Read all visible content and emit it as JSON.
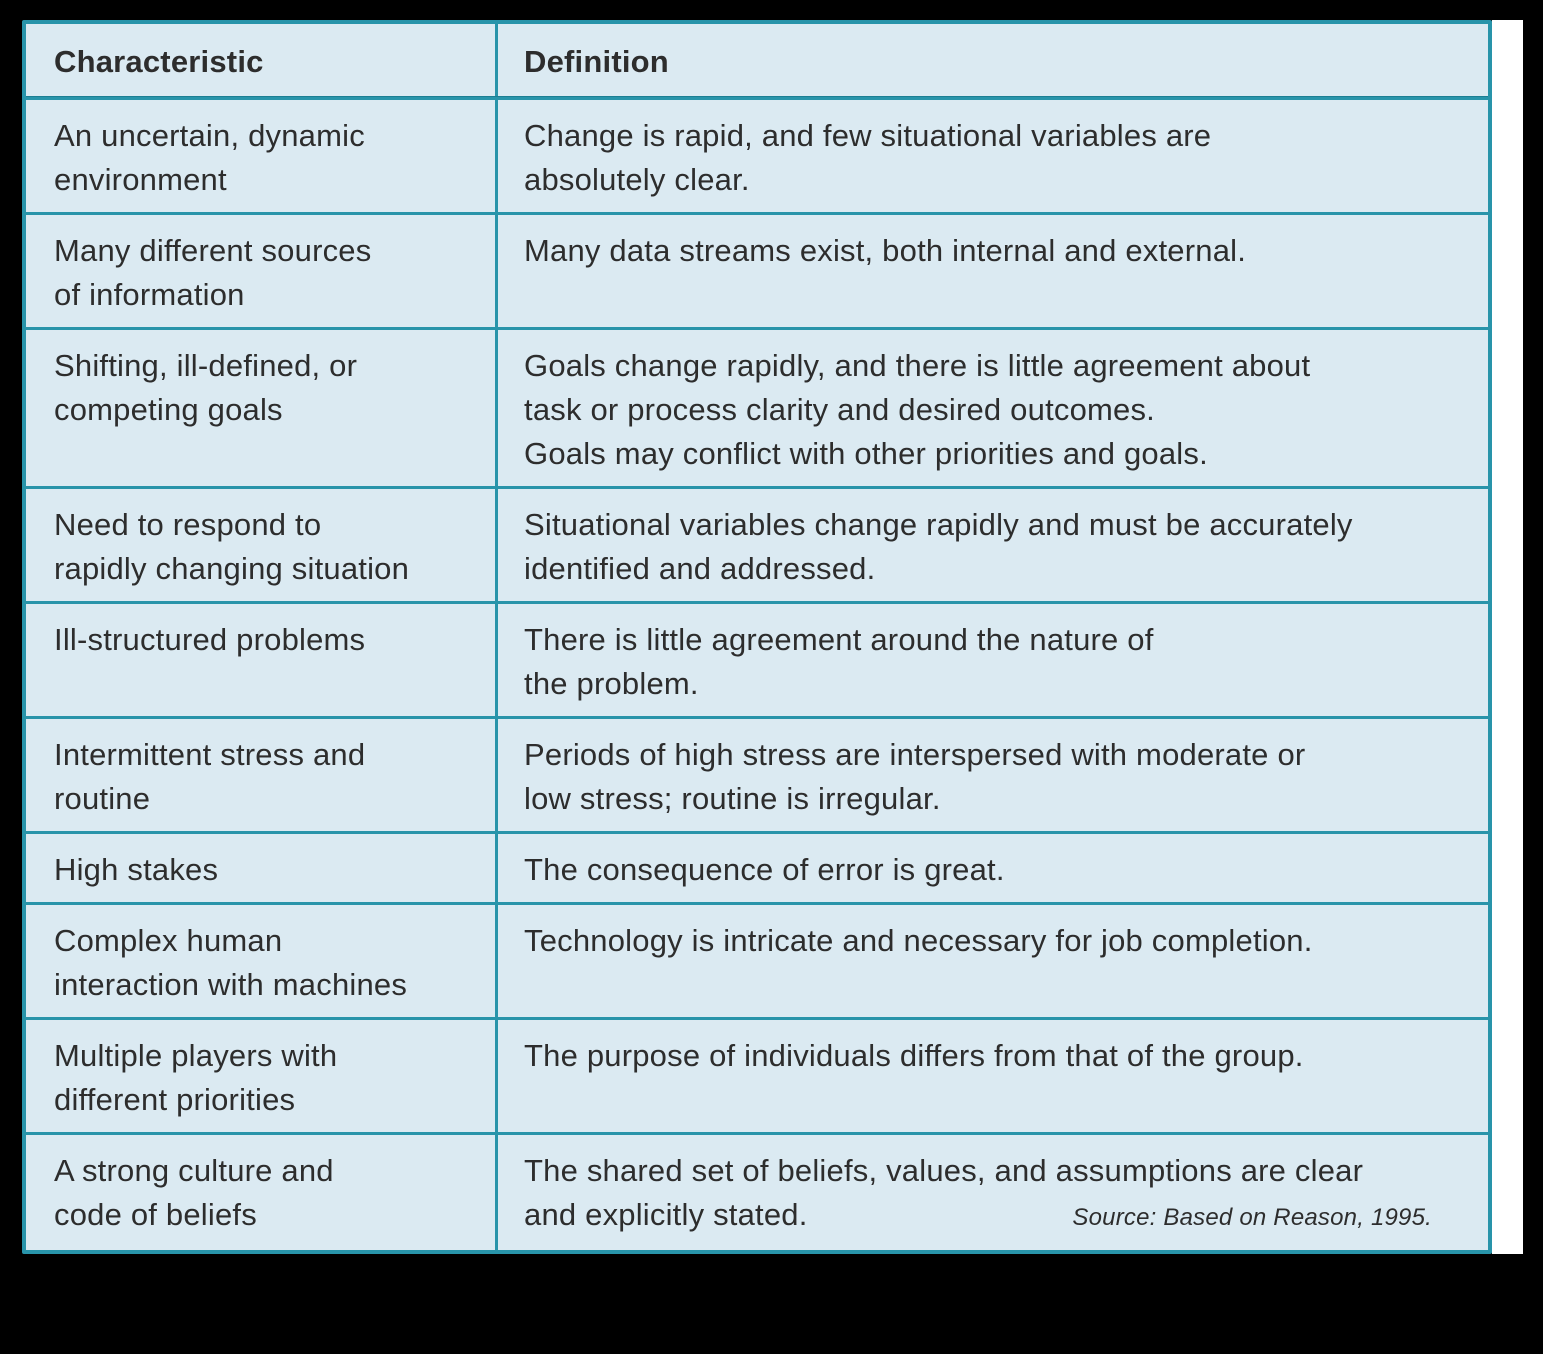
{
  "table": {
    "columns": [
      {
        "label": "Characteristic"
      },
      {
        "label": "Definition"
      }
    ],
    "rows": [
      {
        "characteristic": [
          "An uncertain, dynamic",
          "environment"
        ],
        "definition": [
          "Change is rapid, and few situational variables are",
          "absolutely clear."
        ]
      },
      {
        "characteristic": [
          "Many different sources",
          "of information"
        ],
        "definition": [
          "Many data streams exist, both internal and external."
        ]
      },
      {
        "characteristic": [
          "Shifting, ill-defined, or",
          "competing goals"
        ],
        "definition": [
          "Goals change rapidly, and there is little agreement about",
          "task or process clarity and desired outcomes.",
          "Goals may conflict with other priorities and goals."
        ]
      },
      {
        "characteristic": [
          "Need to respond to",
          "rapidly changing situation"
        ],
        "definition": [
          "Situational variables change rapidly and must be accurately",
          "identified and addressed."
        ]
      },
      {
        "characteristic": [
          "Ill-structured problems"
        ],
        "definition": [
          "There is little agreement around the nature of",
          "the problem."
        ]
      },
      {
        "characteristic": [
          "Intermittent stress and",
          "routine"
        ],
        "definition": [
          "Periods of high stress are interspersed with moderate or",
          "low stress; routine is irregular."
        ]
      },
      {
        "characteristic": [
          "High stakes"
        ],
        "definition": [
          "The consequence of error is great."
        ]
      },
      {
        "characteristic": [
          "Complex human",
          "interaction with machines"
        ],
        "definition": [
          "Technology is intricate and necessary for job completion."
        ]
      },
      {
        "characteristic": [
          "Multiple players with",
          "different priorities"
        ],
        "definition": [
          "The purpose of individuals differs from that of the group."
        ]
      },
      {
        "characteristic": [
          "A strong culture and",
          "code of beliefs"
        ],
        "definition": [
          "The shared set of beliefs, values, and assumptions are clear",
          "and explicitly stated."
        ],
        "source": "Source: Based on Reason, 1995."
      }
    ],
    "colors": {
      "border": "#2894AA",
      "cell_bg": "#DBEAF2",
      "text": "#2D2D2D",
      "surround_bg": "#000000",
      "page_margin": "#FFFFFF"
    }
  }
}
